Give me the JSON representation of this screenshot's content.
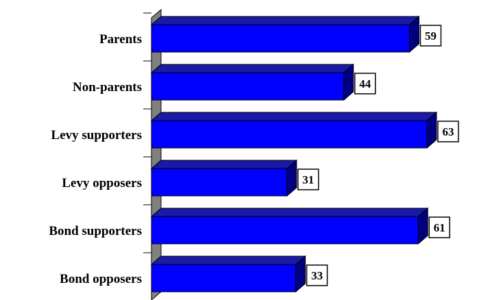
{
  "chart_data": {
    "type": "bar",
    "orientation": "horizontal",
    "style": "3d",
    "categories": [
      "Parents",
      "Non-parents",
      "Levy supporters",
      "Levy opposers",
      "Bond supporters",
      "Bond opposers"
    ],
    "values": [
      59,
      44,
      63,
      31,
      61,
      33
    ],
    "title": "",
    "xlabel": "",
    "ylabel": "",
    "xlim": [
      0,
      63
    ],
    "grid": false,
    "legend": "none",
    "data_labels": true
  },
  "colors": {
    "bar_front": "#0000ff",
    "bar_top": "#1a1aa6",
    "bar_side": "#000080",
    "axis_wall": "#808080",
    "label_box": "#ffffff"
  }
}
